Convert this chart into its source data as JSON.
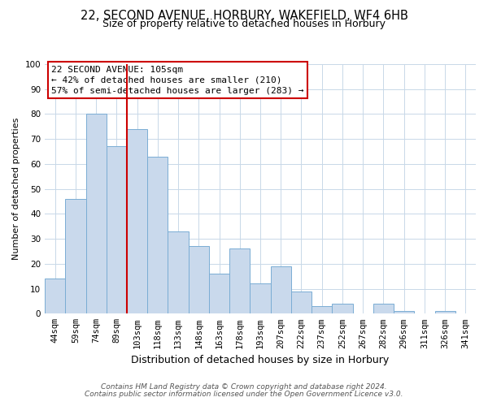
{
  "title": "22, SECOND AVENUE, HORBURY, WAKEFIELD, WF4 6HB",
  "subtitle": "Size of property relative to detached houses in Horbury",
  "xlabel": "Distribution of detached houses by size in Horbury",
  "ylabel": "Number of detached properties",
  "bin_labels": [
    "44sqm",
    "59sqm",
    "74sqm",
    "89sqm",
    "103sqm",
    "118sqm",
    "133sqm",
    "148sqm",
    "163sqm",
    "178sqm",
    "193sqm",
    "207sqm",
    "222sqm",
    "237sqm",
    "252sqm",
    "267sqm",
    "282sqm",
    "296sqm",
    "311sqm",
    "326sqm",
    "341sqm"
  ],
  "bar_values": [
    14,
    46,
    80,
    67,
    74,
    63,
    33,
    27,
    16,
    26,
    12,
    19,
    9,
    3,
    4,
    0,
    4,
    1,
    0,
    1,
    0
  ],
  "bar_color": "#c9d9ec",
  "bar_edge_color": "#7aadd4",
  "vline_x_index": 4,
  "vline_color": "#cc0000",
  "ylim": [
    0,
    100
  ],
  "yticks": [
    0,
    10,
    20,
    30,
    40,
    50,
    60,
    70,
    80,
    90,
    100
  ],
  "annotation_title": "22 SECOND AVENUE: 105sqm",
  "annotation_line1": "← 42% of detached houses are smaller (210)",
  "annotation_line2": "57% of semi-detached houses are larger (283) →",
  "annotation_box_color": "#ffffff",
  "annotation_box_edge_color": "#cc0000",
  "footer1": "Contains HM Land Registry data © Crown copyright and database right 2024.",
  "footer2": "Contains public sector information licensed under the Open Government Licence v3.0.",
  "background_color": "#ffffff",
  "grid_color": "#c8d8e8",
  "title_fontsize": 10.5,
  "subtitle_fontsize": 9,
  "xlabel_fontsize": 9,
  "ylabel_fontsize": 8,
  "tick_fontsize": 7.5,
  "annotation_fontsize": 8,
  "footer_fontsize": 6.5
}
